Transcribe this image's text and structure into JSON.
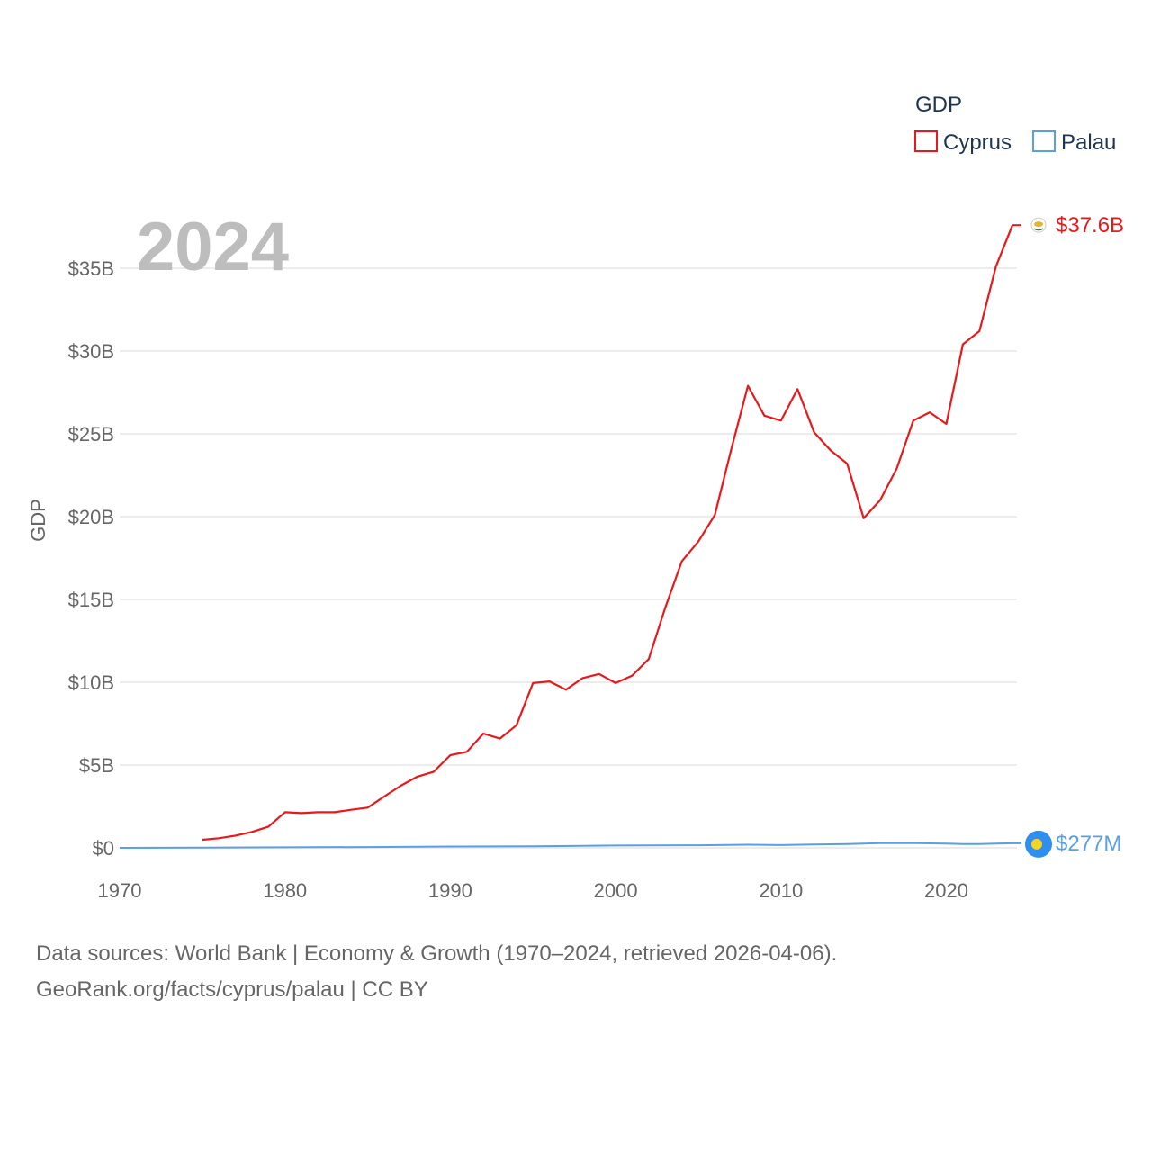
{
  "chart_data": {
    "type": "line",
    "title": "GDP",
    "year_label": "2024",
    "ylabel": "GDP",
    "xlabel": "",
    "xlim": [
      1970,
      2024
    ],
    "ylim": [
      0,
      37600000000
    ],
    "x_ticks": [
      1970,
      1980,
      1990,
      2000,
      2010,
      2020
    ],
    "y_ticks": [
      {
        "value": 0,
        "label": "$0"
      },
      {
        "value": 5000000000,
        "label": "$5B"
      },
      {
        "value": 10000000000,
        "label": "$10B"
      },
      {
        "value": 15000000000,
        "label": "$15B"
      },
      {
        "value": 20000000000,
        "label": "$20B"
      },
      {
        "value": 25000000000,
        "label": "$25B"
      },
      {
        "value": 30000000000,
        "label": "$30B"
      },
      {
        "value": 35000000000,
        "label": "$35B"
      }
    ],
    "grid": true,
    "legend": {
      "title": "GDP",
      "position": "top-right"
    },
    "series": [
      {
        "name": "Cyprus",
        "color": "#e8191d",
        "end_label": "$37.6B",
        "marker_icon": "cyprus-flag-icon",
        "points": [
          [
            1975,
            0.49
          ],
          [
            1976,
            0.58
          ],
          [
            1977,
            0.74
          ],
          [
            1978,
            0.96
          ],
          [
            1979,
            1.28
          ],
          [
            1980,
            2.15
          ],
          [
            1981,
            2.1
          ],
          [
            1982,
            2.15
          ],
          [
            1983,
            2.15
          ],
          [
            1984,
            2.3
          ],
          [
            1985,
            2.43
          ],
          [
            1986,
            3.1
          ],
          [
            1987,
            3.75
          ],
          [
            1988,
            4.3
          ],
          [
            1989,
            4.6
          ],
          [
            1990,
            5.6
          ],
          [
            1991,
            5.8
          ],
          [
            1992,
            6.9
          ],
          [
            1993,
            6.6
          ],
          [
            1994,
            7.4
          ],
          [
            1995,
            9.95
          ],
          [
            1996,
            10.05
          ],
          [
            1997,
            9.55
          ],
          [
            1998,
            10.25
          ],
          [
            1999,
            10.5
          ],
          [
            2000,
            9.95
          ],
          [
            2001,
            10.4
          ],
          [
            2002,
            11.4
          ],
          [
            2003,
            14.5
          ],
          [
            2004,
            17.3
          ],
          [
            2005,
            18.5
          ],
          [
            2006,
            20.1
          ],
          [
            2007,
            24.1
          ],
          [
            2008,
            27.9
          ],
          [
            2009,
            26.1
          ],
          [
            2010,
            25.8
          ],
          [
            2011,
            27.7
          ],
          [
            2012,
            25.1
          ],
          [
            2013,
            24.0
          ],
          [
            2014,
            23.2
          ],
          [
            2015,
            19.9
          ],
          [
            2016,
            21.0
          ],
          [
            2017,
            22.9
          ],
          [
            2018,
            25.8
          ],
          [
            2019,
            26.3
          ],
          [
            2020,
            25.6
          ],
          [
            2021,
            30.4
          ],
          [
            2022,
            31.2
          ],
          [
            2023,
            35.1
          ],
          [
            2024,
            37.6
          ]
        ]
      },
      {
        "name": "Palau",
        "color": "#5a9fe6",
        "end_label": "$277M",
        "marker_icon": "palau-flag-icon",
        "points": [
          [
            1970,
            0.0
          ],
          [
            1975,
            0.01
          ],
          [
            1980,
            0.03
          ],
          [
            1985,
            0.05
          ],
          [
            1990,
            0.08
          ],
          [
            1995,
            0.1
          ],
          [
            2000,
            0.14
          ],
          [
            2005,
            0.16
          ],
          [
            2008,
            0.19
          ],
          [
            2010,
            0.17
          ],
          [
            2012,
            0.2
          ],
          [
            2014,
            0.23
          ],
          [
            2016,
            0.29
          ],
          [
            2018,
            0.29
          ],
          [
            2020,
            0.26
          ],
          [
            2021,
            0.23
          ],
          [
            2022,
            0.23
          ],
          [
            2023,
            0.26
          ],
          [
            2024,
            0.277
          ]
        ]
      }
    ],
    "value_unit": "billions USD"
  },
  "footer": {
    "sources": "Data sources: World Bank | Economy & Growth (1970–2024, retrieved 2026-04-06).",
    "credit": "GeoRank.org/facts/cyprus/palau | CC BY"
  }
}
